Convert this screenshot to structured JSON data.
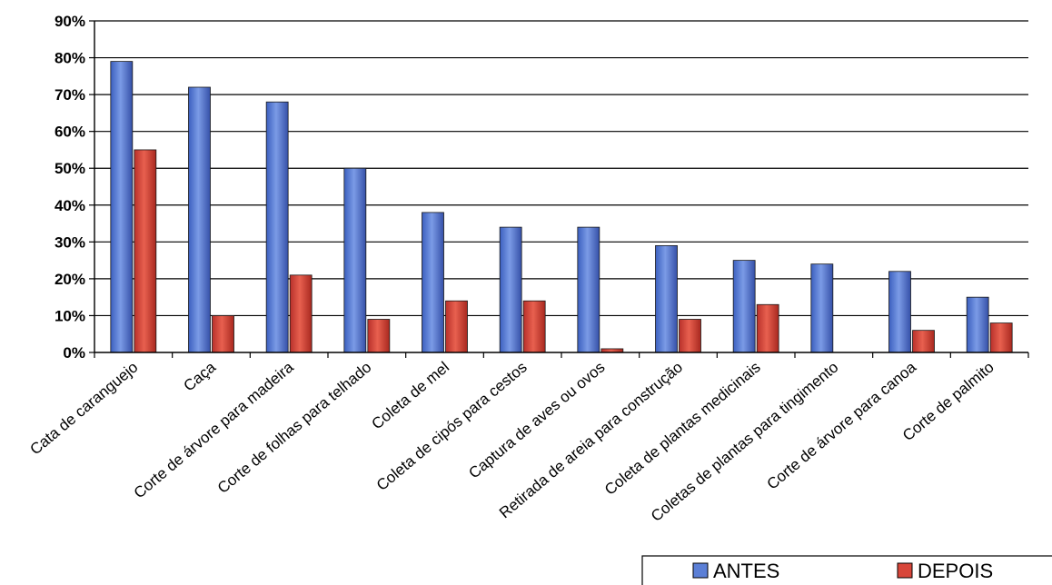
{
  "chart_data": {
    "type": "bar",
    "title": "",
    "xlabel": "",
    "ylabel": "",
    "ylim": [
      0,
      90
    ],
    "yticks": [
      "0%",
      "10%",
      "20%",
      "30%",
      "40%",
      "50%",
      "60%",
      "70%",
      "80%",
      "90%"
    ],
    "grid": true,
    "legend": "bottom-right",
    "categories": [
      "Cata de caranguejo",
      "Caça",
      "Corte de árvore para madeira",
      "Corte de folhas para telhado",
      "Coleta de mel",
      "Coleta de cipós para cestos",
      "Captura de aves ou ovos",
      "Retirada de areia para construção",
      "Coleta de plantas medicinais",
      "Coletas de plantas para tingimento",
      "Corte de árvore para canoa",
      "Corte de palmito"
    ],
    "series": [
      {
        "name": "ANTES",
        "color": "#5b7fd6",
        "values": [
          79,
          72,
          68,
          50,
          38,
          34,
          34,
          29,
          25,
          24,
          22,
          15
        ]
      },
      {
        "name": "DEPOIS",
        "color": "#d8463a",
        "values": [
          55,
          10,
          21,
          9,
          14,
          14,
          1,
          9,
          13,
          0,
          6,
          8
        ]
      }
    ]
  }
}
